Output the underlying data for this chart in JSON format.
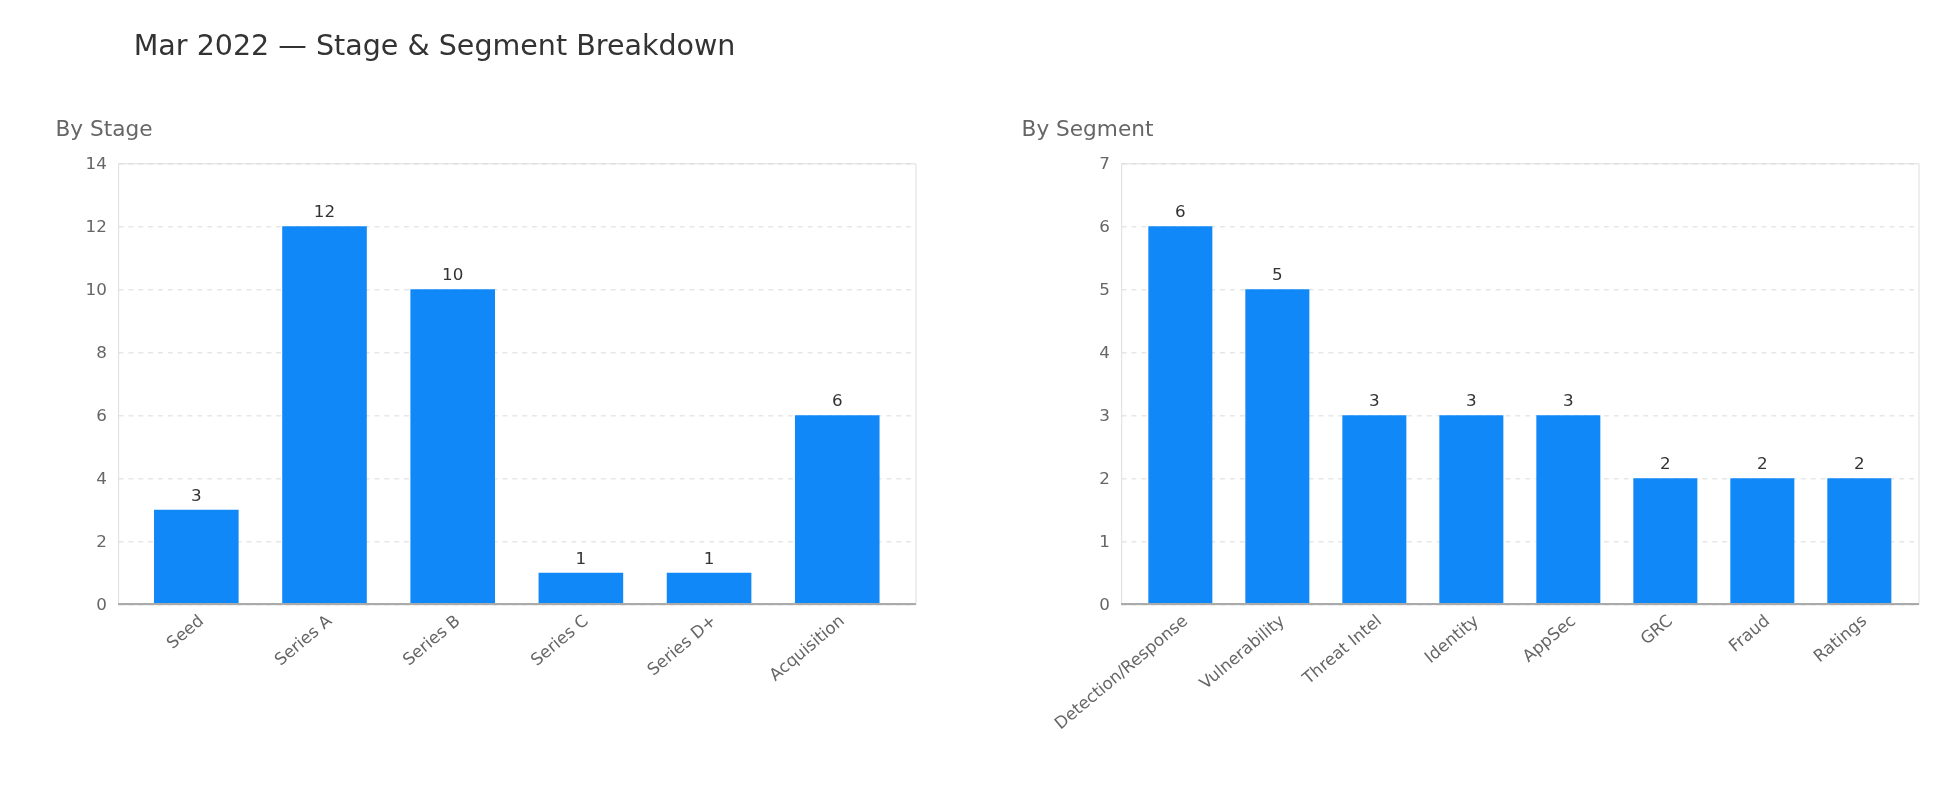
{
  "chart_data": [
    {
      "type": "bar",
      "title": "Mar 2022 — Stage & Segment Breakdown",
      "subtitle": "By Stage",
      "categories": [
        "Seed",
        "Series A",
        "Series B",
        "Series C",
        "Series D+",
        "Acquisition"
      ],
      "values": [
        3,
        12,
        10,
        1,
        1,
        6
      ],
      "color": "#1188f7",
      "ylim": [
        0,
        14
      ],
      "yticks": [
        0,
        2,
        4,
        6,
        8,
        10,
        12,
        14
      ],
      "grid": "y",
      "data_labels": true
    },
    {
      "type": "bar",
      "subtitle": "By Segment",
      "categories": [
        "Detection/Response",
        "Vulnerability",
        "Threat Intel",
        "Identity",
        "AppSec",
        "GRC",
        "Fraud",
        "Ratings"
      ],
      "values": [
        6,
        5,
        3,
        3,
        3,
        2,
        2,
        2
      ],
      "color": "#1188f7",
      "ylim": [
        0,
        7
      ],
      "yticks": [
        0,
        1,
        2,
        3,
        4,
        5,
        6,
        7
      ],
      "grid": "y",
      "data_labels": true
    }
  ]
}
